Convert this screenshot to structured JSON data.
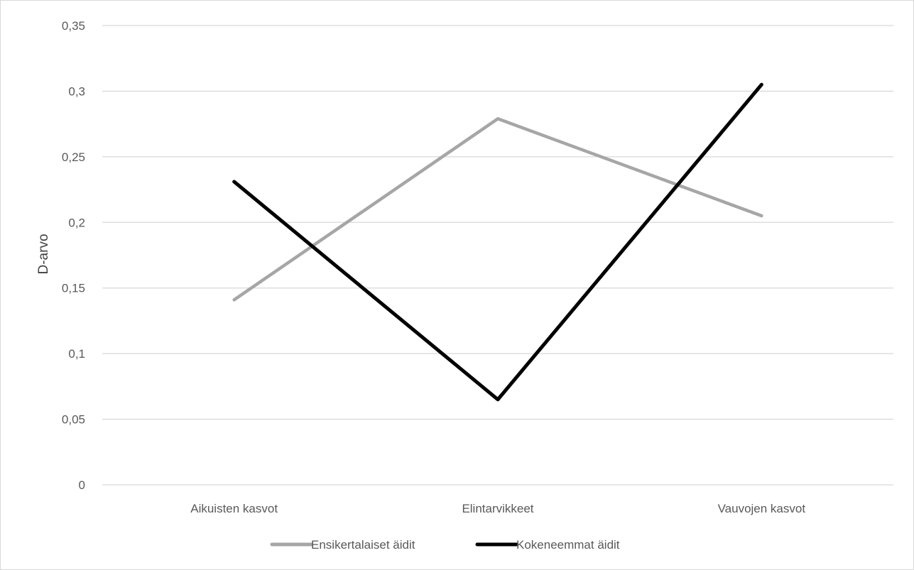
{
  "chart_data": {
    "type": "line",
    "categories": [
      "Aikuisten kasvot",
      "Elintarvikkeet",
      "Vauvojen kasvot"
    ],
    "series": [
      {
        "name": "Ensikertalaiset äidit",
        "values": [
          0.141,
          0.279,
          0.205
        ],
        "color": "#a6a6a6"
      },
      {
        "name": "Kokeneemmat äidit",
        "values": [
          0.231,
          0.065,
          0.305
        ],
        "color": "#000000"
      }
    ],
    "ylabel": "D-arvo",
    "xlabel": "",
    "ylim": [
      0,
      0.35
    ],
    "yticks": [
      {
        "value": 0,
        "label": "0"
      },
      {
        "value": 0.05,
        "label": "0,05"
      },
      {
        "value": 0.1,
        "label": "0,1"
      },
      {
        "value": 0.15,
        "label": "0,15"
      },
      {
        "value": 0.2,
        "label": "0,2"
      },
      {
        "value": 0.25,
        "label": "0,25"
      },
      {
        "value": 0.3,
        "label": "0,3"
      },
      {
        "value": 0.35,
        "label": "0,35"
      }
    ],
    "grid": true,
    "legend_position": "bottom"
  }
}
